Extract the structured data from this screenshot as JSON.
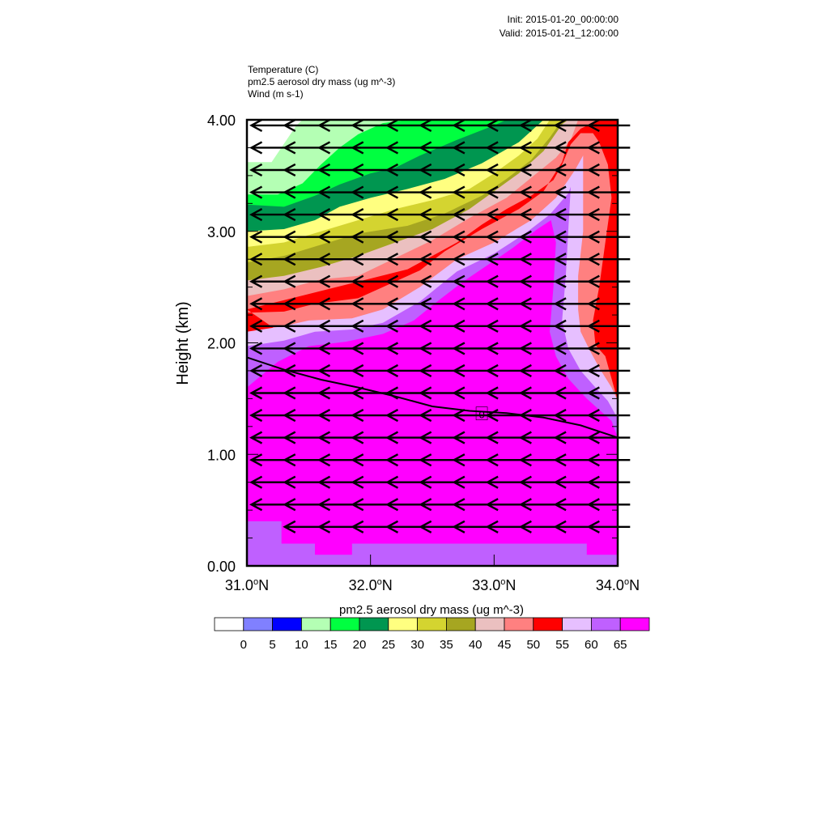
{
  "header": {
    "init": "Init: 2015-01-20_00:00:00",
    "valid": "Valid: 2015-01-21_12:00:00"
  },
  "fields": [
    "Temperature   (C)",
    "pm2.5 aerosol dry mass   (ug m^-3)",
    "Wind   (m s-1)"
  ],
  "chart_data": {
    "type": "heatmap",
    "title": "",
    "xlabel": "",
    "ylabel": "Height (km)",
    "xlim": [
      31.0,
      34.0
    ],
    "ylim": [
      0.0,
      4.0
    ],
    "x_ticks": [
      {
        "value": 31.0,
        "text": "31.0",
        "suffix": "N"
      },
      {
        "value": 32.0,
        "text": "32.0",
        "suffix": "N"
      },
      {
        "value": 33.0,
        "text": "33.0",
        "suffix": "N"
      },
      {
        "value": 34.0,
        "text": "34.0",
        "suffix": "N"
      }
    ],
    "y_ticks": [
      {
        "value": 0.0,
        "text": "0.00"
      },
      {
        "value": 1.0,
        "text": "1.00"
      },
      {
        "value": 2.0,
        "text": "2.00"
      },
      {
        "value": 3.0,
        "text": "3.00"
      },
      {
        "value": 4.0,
        "text": "4.00"
      }
    ],
    "colorbar": {
      "label": "pm2.5 aerosol dry mass  (ug m^-3)",
      "levels": [
        0,
        5,
        10,
        15,
        20,
        25,
        30,
        35,
        40,
        45,
        50,
        55,
        60,
        65
      ],
      "colors": [
        "#ffffff",
        "#8080ff",
        "#0000ff",
        "#b4ffb4",
        "#00ff40",
        "#009650",
        "#ffff80",
        "#d4d430",
        "#a6a621",
        "#ebc0c0",
        "#ff8080",
        "#ff0000",
        "#e6bfff",
        "#bf60ff",
        "#ff00ff"
      ]
    },
    "pm25_bands": [
      {
        "level": 15,
        "color": "#b4ffb4",
        "upper": [
          [
            31.0,
            3.62
          ],
          [
            31.2,
            3.62
          ],
          [
            31.4,
            3.95
          ],
          [
            31.45,
            4.0
          ],
          [
            34.0,
            4.0
          ]
        ]
      },
      {
        "level": 20,
        "color": "#00ff40",
        "upper": [
          [
            31.0,
            3.33
          ],
          [
            31.25,
            3.33
          ],
          [
            31.45,
            3.43
          ],
          [
            31.6,
            3.6
          ],
          [
            31.75,
            3.75
          ],
          [
            31.9,
            3.87
          ],
          [
            32.1,
            3.97
          ],
          [
            32.3,
            4.0
          ],
          [
            34.0,
            4.0
          ]
        ]
      },
      {
        "level": 25,
        "color": "#009650",
        "upper": [
          [
            31.0,
            3.24
          ],
          [
            31.3,
            3.22
          ],
          [
            31.55,
            3.32
          ],
          [
            31.75,
            3.42
          ],
          [
            32.0,
            3.52
          ],
          [
            32.2,
            3.57
          ],
          [
            32.4,
            3.68
          ],
          [
            32.7,
            3.82
          ],
          [
            33.0,
            3.95
          ],
          [
            33.1,
            4.0
          ],
          [
            34.0,
            4.0
          ]
        ]
      },
      {
        "level": 30,
        "color": "#ffff80",
        "upper": [
          [
            31.0,
            3.0
          ],
          [
            31.3,
            3.02
          ],
          [
            31.55,
            3.1
          ],
          [
            31.75,
            3.22
          ],
          [
            32.0,
            3.3
          ],
          [
            32.3,
            3.38
          ],
          [
            32.6,
            3.47
          ],
          [
            32.9,
            3.61
          ],
          [
            33.2,
            3.8
          ],
          [
            33.4,
            4.0
          ],
          [
            34.0,
            4.0
          ]
        ]
      },
      {
        "level": 35,
        "color": "#d4d430",
        "upper": [
          [
            31.0,
            2.86
          ],
          [
            31.3,
            2.9
          ],
          [
            31.6,
            3.0
          ],
          [
            31.9,
            3.1
          ],
          [
            32.2,
            3.2
          ],
          [
            32.5,
            3.28
          ],
          [
            32.8,
            3.38
          ],
          [
            33.0,
            3.52
          ],
          [
            33.2,
            3.68
          ],
          [
            33.35,
            3.83
          ],
          [
            33.45,
            4.0
          ],
          [
            34.0,
            4.0
          ]
        ]
      },
      {
        "level": 40,
        "color": "#a6a621",
        "upper": [
          [
            31.0,
            2.72
          ],
          [
            31.3,
            2.78
          ],
          [
            31.6,
            2.88
          ],
          [
            31.9,
            2.98
          ],
          [
            32.3,
            3.05
          ],
          [
            32.6,
            3.16
          ],
          [
            32.9,
            3.32
          ],
          [
            33.1,
            3.47
          ],
          [
            33.3,
            3.64
          ],
          [
            33.45,
            3.84
          ],
          [
            33.55,
            4.0
          ],
          [
            34.0,
            4.0
          ]
        ]
      },
      {
        "level": 45,
        "color": "#ebc0c0",
        "upper": [
          [
            31.0,
            2.56
          ],
          [
            31.3,
            2.6
          ],
          [
            31.6,
            2.68
          ],
          [
            31.9,
            2.78
          ],
          [
            32.2,
            2.9
          ],
          [
            32.5,
            3.02
          ],
          [
            32.8,
            3.2
          ],
          [
            33.0,
            3.36
          ],
          [
            33.2,
            3.52
          ],
          [
            33.4,
            3.72
          ],
          [
            33.55,
            3.96
          ],
          [
            33.6,
            4.0
          ],
          [
            34.0,
            4.0
          ]
        ]
      },
      {
        "level": 50,
        "color": "#ff8080",
        "upper": [
          [
            31.0,
            2.42
          ],
          [
            31.3,
            2.48
          ],
          [
            31.6,
            2.57
          ],
          [
            31.9,
            2.6
          ],
          [
            32.2,
            2.76
          ],
          [
            32.5,
            2.92
          ],
          [
            32.8,
            3.12
          ],
          [
            33.1,
            3.3
          ],
          [
            33.3,
            3.48
          ],
          [
            33.5,
            3.66
          ],
          [
            33.62,
            3.82
          ],
          [
            33.68,
            4.0
          ],
          [
            34.0,
            4.0
          ]
        ]
      },
      {
        "level": 55,
        "color": "#ff0000",
        "upper": [
          [
            31.0,
            2.27
          ],
          [
            31.3,
            2.28
          ],
          [
            31.55,
            2.35
          ],
          [
            31.9,
            2.4
          ],
          [
            32.2,
            2.55
          ],
          [
            32.4,
            2.65
          ],
          [
            32.6,
            2.82
          ],
          [
            32.9,
            3.02
          ],
          [
            33.2,
            3.2
          ],
          [
            33.4,
            3.36
          ],
          [
            33.55,
            3.62
          ],
          [
            33.6,
            3.8
          ],
          [
            33.7,
            3.92
          ],
          [
            33.85,
            4.0
          ],
          [
            34.0,
            4.0
          ],
          [
            34.0,
            1.48
          ],
          [
            33.95,
            1.68
          ],
          [
            33.9,
            1.88
          ],
          [
            33.82,
            1.98
          ],
          [
            33.8,
            2.2
          ],
          [
            33.85,
            2.5
          ],
          [
            33.9,
            2.9
          ],
          [
            33.95,
            3.3
          ],
          [
            33.92,
            3.6
          ],
          [
            33.85,
            3.8
          ],
          [
            33.8,
            3.88
          ],
          [
            33.7,
            3.88
          ],
          [
            33.62,
            3.78
          ],
          [
            33.55,
            3.6
          ],
          [
            33.48,
            3.46
          ],
          [
            33.3,
            3.32
          ],
          [
            33.1,
            3.2
          ],
          [
            32.9,
            3.06
          ],
          [
            32.7,
            2.9
          ],
          [
            32.5,
            2.78
          ],
          [
            32.3,
            2.66
          ],
          [
            31.0,
            2.3
          ]
        ]
      },
      {
        "level": 60,
        "color": "#e6bfff",
        "upper": [
          [
            31.0,
            2.1
          ],
          [
            31.3,
            2.15
          ],
          [
            31.5,
            2.2
          ],
          [
            31.85,
            2.22
          ],
          [
            32.1,
            2.3
          ],
          [
            32.4,
            2.5
          ],
          [
            32.7,
            2.75
          ],
          [
            33.0,
            2.9
          ],
          [
            33.3,
            3.1
          ],
          [
            33.5,
            3.3
          ],
          [
            33.6,
            3.46
          ],
          [
            33.66,
            3.56
          ],
          [
            33.72,
            3.68
          ],
          [
            33.72,
            3.0
          ],
          [
            33.68,
            2.6
          ],
          [
            33.68,
            2.3
          ],
          [
            33.7,
            2.1
          ],
          [
            33.78,
            1.92
          ],
          [
            33.86,
            1.76
          ],
          [
            33.95,
            1.6
          ],
          [
            34.0,
            1.48
          ],
          [
            34.0,
            0.0
          ],
          [
            31.0,
            0.0
          ]
        ]
      },
      {
        "level": 65,
        "color": "#bf60ff",
        "upper": [
          [
            31.0,
            1.97
          ],
          [
            31.3,
            2.02
          ],
          [
            31.55,
            2.1
          ],
          [
            31.85,
            2.12
          ],
          [
            32.1,
            2.18
          ],
          [
            32.4,
            2.37
          ],
          [
            32.7,
            2.64
          ],
          [
            33.0,
            2.8
          ],
          [
            33.25,
            2.98
          ],
          [
            33.45,
            3.15
          ],
          [
            33.6,
            3.34
          ],
          [
            33.62,
            3.4
          ],
          [
            33.6,
            3.0
          ],
          [
            33.58,
            2.6
          ],
          [
            33.55,
            2.2
          ],
          [
            33.6,
            1.95
          ],
          [
            33.7,
            1.75
          ],
          [
            33.82,
            1.6
          ],
          [
            33.92,
            1.48
          ],
          [
            34.0,
            1.32
          ],
          [
            34.0,
            0.0
          ],
          [
            31.0,
            0.0
          ]
        ]
      },
      {
        "level": 70,
        "color": "#ff00ff",
        "upper": [
          [
            31.0,
            1.6
          ],
          [
            31.25,
            1.83
          ],
          [
            31.5,
            1.97
          ],
          [
            31.8,
            2.01
          ],
          [
            32.1,
            2.08
          ],
          [
            32.35,
            2.2
          ],
          [
            32.55,
            2.38
          ],
          [
            32.75,
            2.55
          ],
          [
            32.95,
            2.7
          ],
          [
            33.15,
            2.85
          ],
          [
            33.35,
            3.02
          ],
          [
            33.46,
            3.1
          ],
          [
            33.5,
            2.9
          ],
          [
            33.48,
            2.5
          ],
          [
            33.45,
            2.1
          ],
          [
            33.5,
            1.88
          ],
          [
            33.6,
            1.68
          ],
          [
            33.75,
            1.5
          ],
          [
            33.85,
            1.4
          ],
          [
            33.95,
            1.3
          ],
          [
            34.0,
            1.15
          ],
          [
            34.0,
            0.1
          ],
          [
            33.75,
            0.1
          ],
          [
            33.75,
            0.2
          ],
          [
            31.85,
            0.2
          ],
          [
            31.85,
            0.1
          ],
          [
            31.55,
            0.1
          ],
          [
            31.55,
            0.2
          ],
          [
            31.28,
            0.2
          ],
          [
            31.28,
            0.4
          ],
          [
            31.0,
            0.4
          ]
        ]
      }
    ],
    "temperature_contours": [
      {
        "label": "0",
        "label_at": [
          32.9,
          1.36
        ],
        "points": [
          [
            31.0,
            1.87
          ],
          [
            31.3,
            1.76
          ],
          [
            31.6,
            1.67
          ],
          [
            31.9,
            1.6
          ],
          [
            32.2,
            1.52
          ],
          [
            32.5,
            1.43
          ],
          [
            32.8,
            1.39
          ],
          [
            33.1,
            1.37
          ],
          [
            33.4,
            1.33
          ],
          [
            33.7,
            1.26
          ],
          [
            34.0,
            1.15
          ]
        ]
      }
    ],
    "wind": {
      "x_positions": [
        31.2,
        31.47,
        31.75,
        32.02,
        32.3,
        32.57,
        32.84,
        33.11,
        33.38,
        33.66,
        33.93
      ],
      "levels": [
        3.95,
        3.75,
        3.55,
        3.35,
        3.15,
        2.95,
        2.75,
        2.55,
        2.35,
        2.15,
        1.95,
        1.75,
        1.55,
        1.35,
        1.15,
        0.95,
        0.75,
        0.55,
        0.35
      ],
      "direction": "westward"
    }
  }
}
